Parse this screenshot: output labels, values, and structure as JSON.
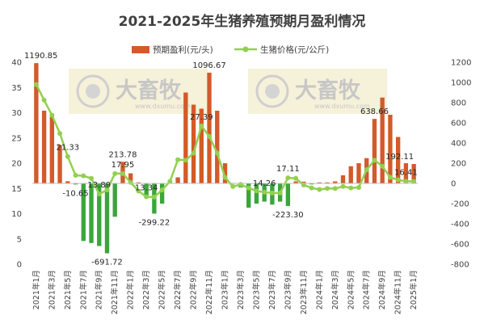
{
  "chart_data": {
    "type": "bar+line",
    "title": "2021-2025年生猪养殖预期月盈利情况",
    "legend": [
      "预期盈利(元/头)",
      "生猪价格(元/公斤)"
    ],
    "legend_placement": "top",
    "colors": {
      "bar": "#d35a2a",
      "bar_negative": "#3aa63a",
      "line": "#92d050"
    },
    "categories": [
      "2021年1月",
      "2021年2月",
      "2021年3月",
      "2021年4月",
      "2021年5月",
      "2021年6月",
      "2021年7月",
      "2021年8月",
      "2021年9月",
      "2021年10月",
      "2021年11月",
      "2021年12月",
      "2022年1月",
      "2022年2月",
      "2022年3月",
      "2022年4月",
      "2022年5月",
      "2022年6月",
      "2022年7月",
      "2022年8月",
      "2022年9月",
      "2022年10月",
      "2022年11月",
      "2022年12月",
      "2023年1月",
      "2023年2月",
      "2023年3月",
      "2023年4月",
      "2023年5月",
      "2023年6月",
      "2023年7月",
      "2023年8月",
      "2023年9月",
      "2023年10月",
      "2023年11月",
      "2023年12月",
      "2024年1月",
      "2024年2月",
      "2024年3月",
      "2024年4月",
      "2024年5月",
      "2024年6月",
      "2024年7月",
      "2024年8月",
      "2024年9月",
      "2024年10月",
      "2024年11月",
      "2024年12月",
      "2025年1月"
    ],
    "xtick_labels": [
      "2021年1月",
      "2021年3月",
      "2021年5月",
      "2021年7月",
      "2021年9月",
      "2021年11月",
      "2022年1月",
      "2022年3月",
      "2022年5月",
      "2022年7月",
      "2022年9月",
      "2022年11月",
      "2023年1月",
      "2023年3月",
      "2023年5月",
      "2023年7月",
      "2023年9月",
      "2023年11月",
      "2024年1月",
      "2024年3月",
      "2024年5月",
      "2024年7月",
      "2024年9月",
      "2024年11月",
      "2025年1月"
    ],
    "series": [
      {
        "name": "预期盈利(元/头)",
        "type": "bar",
        "axis": "right",
        "values": [
          1190.85,
          720,
          660,
          380,
          21.33,
          -10.65,
          -570,
          -590,
          -620,
          -691.72,
          -330,
          213.78,
          100,
          10,
          -120,
          -299.22,
          -200,
          10,
          60,
          900,
          780,
          740,
          1096.67,
          720,
          200,
          5,
          -40,
          -240,
          -200,
          -180,
          -210,
          -180,
          -223.3,
          20,
          17.11,
          -10,
          10,
          10,
          20,
          80,
          170,
          200,
          250,
          638.66,
          850,
          680,
          460,
          200,
          192.11
        ]
      },
      {
        "name": "生猪价格(元/公斤)",
        "type": "line",
        "axis": "left",
        "values": [
          35.6,
          32.5,
          29.5,
          25.9,
          21.33,
          17.6,
          17.5,
          17.0,
          13.89,
          14.7,
          17.95,
          17.95,
          16.2,
          14.5,
          13.34,
          13.3,
          14.7,
          16.4,
          20.7,
          20.6,
          22.0,
          27.39,
          25.3,
          22.0,
          17.2,
          15.4,
          15.8,
          15.1,
          14.5,
          14.26,
          14.1,
          14.1,
          17.11,
          17.0,
          15.7,
          15.1,
          14.8,
          15.0,
          15.0,
          15.4,
          15.1,
          15.2,
          18.7,
          20.6,
          19.4,
          17.2,
          16.7,
          16.41,
          16.41
        ]
      }
    ],
    "left_axis": {
      "range": [
        0,
        40
      ],
      "ticks": [
        0,
        5,
        10,
        15,
        20,
        25,
        30,
        35,
        40
      ]
    },
    "right_axis": {
      "range": [
        -800,
        1200
      ],
      "ticks": [
        -800,
        -600,
        -400,
        -200,
        0,
        200,
        400,
        600,
        800,
        1000,
        1200
      ]
    },
    "data_labels": [
      {
        "series": 0,
        "index": 0,
        "text": "1190.85"
      },
      {
        "series": 1,
        "index": 4,
        "text": "21.33"
      },
      {
        "series": 0,
        "index": 5,
        "text": "-10.65"
      },
      {
        "series": 1,
        "index": 8,
        "text": "13.89"
      },
      {
        "series": 0,
        "index": 9,
        "text": "-691.72"
      },
      {
        "series": 0,
        "index": 11,
        "text": "213.78"
      },
      {
        "series": 1,
        "index": 11,
        "text": "17.95"
      },
      {
        "series": 1,
        "index": 14,
        "text": "13.34"
      },
      {
        "series": 0,
        "index": 15,
        "text": "-299.22"
      },
      {
        "series": 0,
        "index": 22,
        "text": "1096.67"
      },
      {
        "series": 1,
        "index": 21,
        "text": "27.39"
      },
      {
        "series": 1,
        "index": 29,
        "text": "14.26"
      },
      {
        "series": 0,
        "index": 32,
        "text": "-223.30"
      },
      {
        "series": 1,
        "index": 32,
        "text": "17.11"
      },
      {
        "series": 0,
        "index": 43,
        "text": "638.66"
      },
      {
        "series": 0,
        "index": 48,
        "text": "192.11"
      },
      {
        "series": 1,
        "index": 47,
        "text": "16.41"
      }
    ],
    "grid": false
  },
  "watermark": {
    "brand": "大畜牧",
    "url": "www.dxumu.com"
  }
}
